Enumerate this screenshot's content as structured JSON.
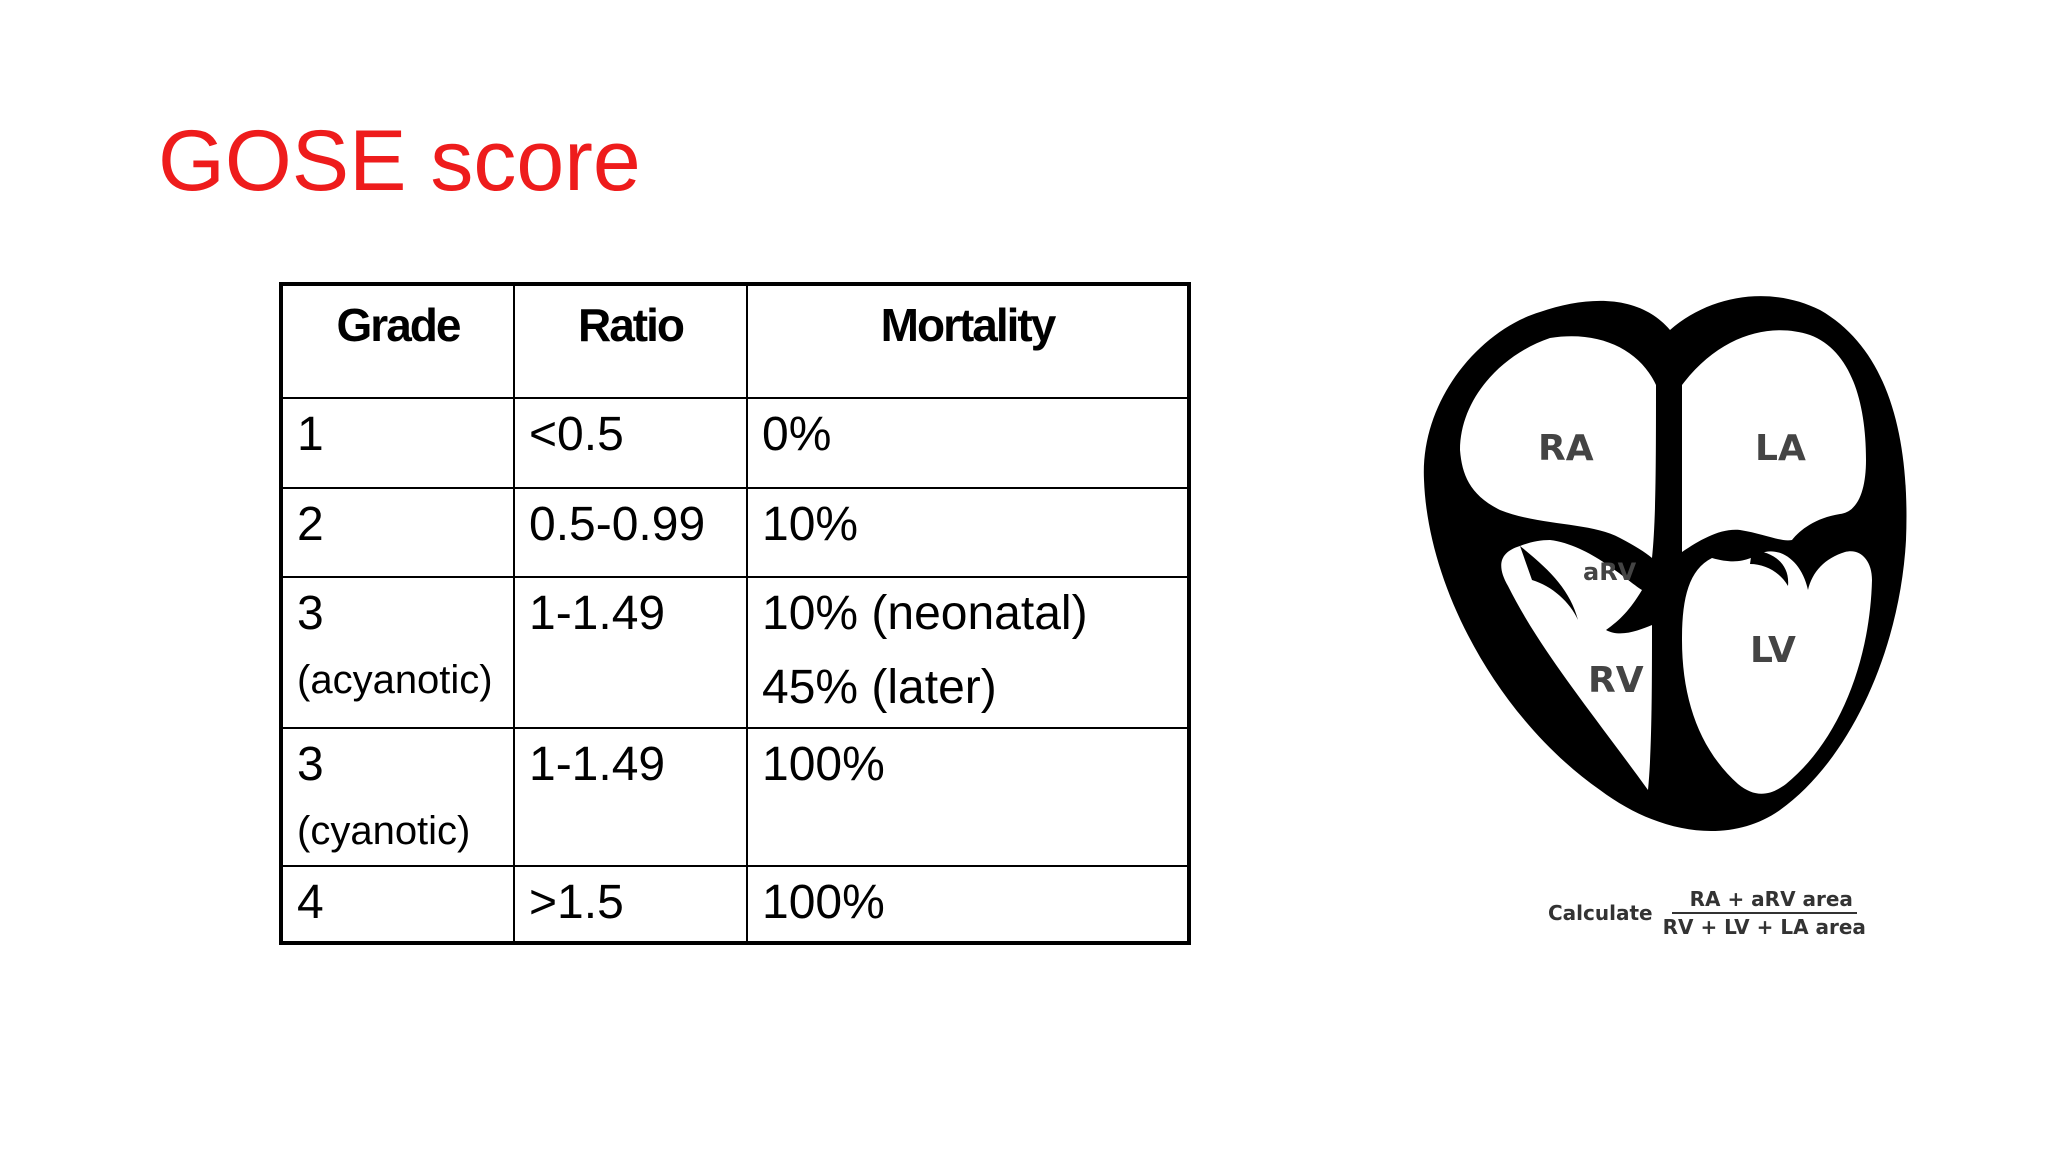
{
  "slide": {
    "title": "GOSE score"
  },
  "table": {
    "headers": [
      "Grade",
      "Ratio",
      "Mortality"
    ],
    "rows": [
      {
        "grade": "1",
        "grade_sub": "",
        "ratio": "<0.5",
        "mortality": "0%",
        "mortality_2": ""
      },
      {
        "grade": "2",
        "grade_sub": "",
        "ratio": "0.5-0.99",
        "mortality": "10%",
        "mortality_2": ""
      },
      {
        "grade": "3",
        "grade_sub": "(acyanotic)",
        "ratio": "1-1.49",
        "mortality": "10% (neonatal)",
        "mortality_2": "45% (later)"
      },
      {
        "grade": "3",
        "grade_sub": "(cyanotic)",
        "ratio": "1-1.49",
        "mortality": "100%",
        "mortality_2": ""
      },
      {
        "grade": "4",
        "grade_sub": "",
        "ratio": ">1.5",
        "mortality": "100%",
        "mortality_2": ""
      }
    ]
  },
  "diagram": {
    "labels": {
      "ra": "RA",
      "la": "LA",
      "arv": "aRV",
      "rv": "RV",
      "lv": "LV"
    },
    "formula": {
      "prefix": "Calculate",
      "numerator": "RA + aRV area",
      "denominator": "RV + LV + LA area"
    }
  }
}
